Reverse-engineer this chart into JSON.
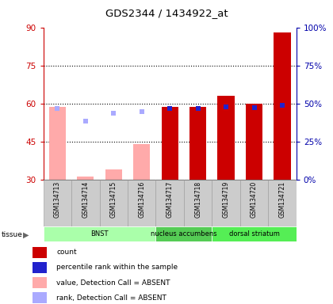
{
  "title": "GDS2344 / 1434922_at",
  "samples": [
    "GSM134713",
    "GSM134714",
    "GSM134715",
    "GSM134716",
    "GSM134717",
    "GSM134718",
    "GSM134719",
    "GSM134720",
    "GSM134721"
  ],
  "bar_values": [
    58.5,
    31.0,
    34.0,
    44.0,
    58.5,
    58.5,
    63.0,
    60.0,
    88.0
  ],
  "bar_colors": [
    "#ffaaaa",
    "#ffaaaa",
    "#ffaaaa",
    "#ffaaaa",
    "#cc0000",
    "#cc0000",
    "#cc0000",
    "#cc0000",
    "#cc0000"
  ],
  "rank_values": [
    46.5,
    38.5,
    43.5,
    44.5,
    46.5,
    46.5,
    47.5,
    47.0,
    48.5
  ],
  "rank_colors": [
    "#aaaaff",
    "#aaaaff",
    "#aaaaff",
    "#aaaaff",
    "#2222cc",
    "#2222cc",
    "#2222cc",
    "#2222cc",
    "#2222cc"
  ],
  "absent_flags": [
    true,
    true,
    true,
    true,
    false,
    false,
    false,
    false,
    false
  ],
  "ylim_left": [
    30,
    90
  ],
  "ylim_right": [
    0,
    100
  ],
  "yticks_left": [
    30,
    45,
    60,
    75,
    90
  ],
  "yticks_right": [
    0,
    25,
    50,
    75,
    100
  ],
  "ytick_labels_right": [
    "0%",
    "25%",
    "50%",
    "75%",
    "100%"
  ],
  "gridlines_at": [
    45,
    60,
    75
  ],
  "tissue_groups": [
    {
      "label": "BNST",
      "start": 0,
      "end": 4
    },
    {
      "label": "nucleus accumbens",
      "start": 4,
      "end": 6
    },
    {
      "label": "dorsal striatum",
      "start": 6,
      "end": 9
    }
  ],
  "tissue_colors": [
    "#aaffaa",
    "#55cc55",
    "#55ee55"
  ],
  "legend_labels": [
    "count",
    "percentile rank within the sample",
    "value, Detection Call = ABSENT",
    "rank, Detection Call = ABSENT"
  ],
  "legend_colors": [
    "#cc0000",
    "#2222cc",
    "#ffaaaa",
    "#aaaaff"
  ],
  "left_axis_color": "#cc0000",
  "right_axis_color": "#0000aa",
  "bar_width": 0.6,
  "rank_marker_size": 20,
  "fig_width": 4.2,
  "fig_height": 3.84
}
